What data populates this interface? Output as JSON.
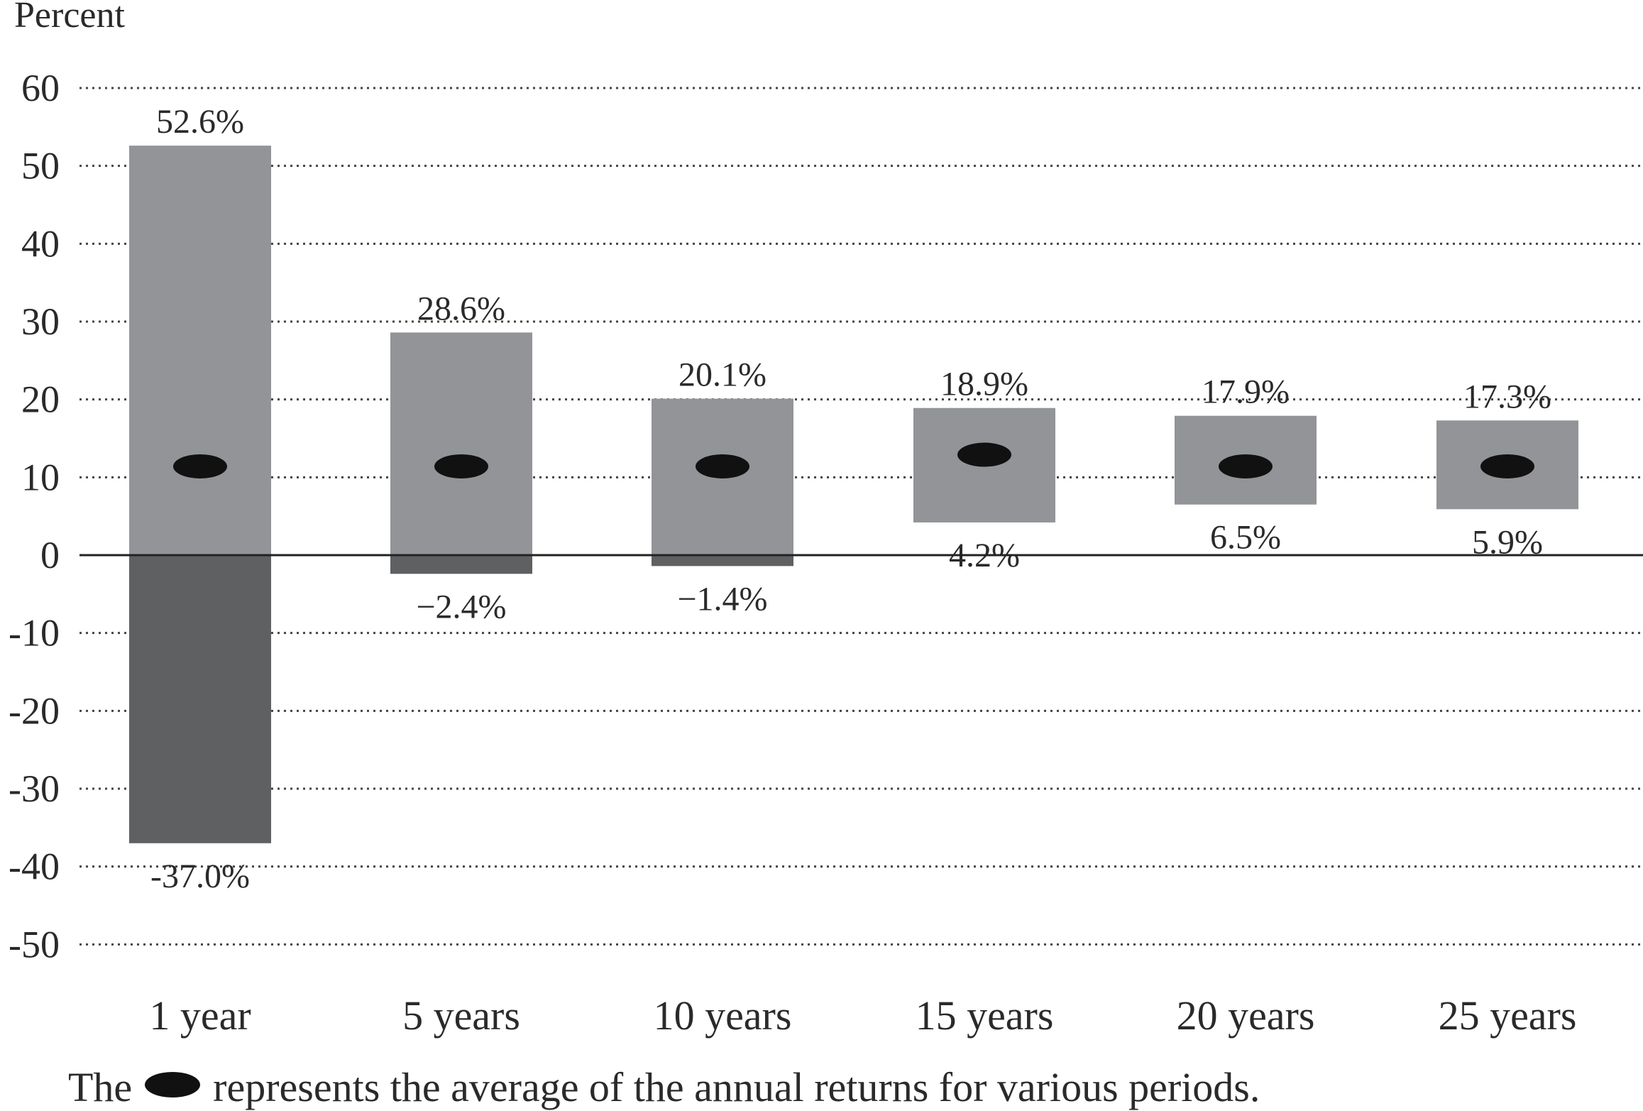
{
  "chart_data": {
    "type": "bar",
    "ylabel": "Percent",
    "ylim": [
      -50,
      60
    ],
    "yticks": [
      60,
      50,
      40,
      30,
      20,
      10,
      0,
      -10,
      -20,
      -30,
      -40,
      -50
    ],
    "grid": "dotted horizontal",
    "categories": [
      "1 year",
      "5 years",
      "10 years",
      "15 years",
      "20 years",
      "25 years"
    ],
    "series": [
      {
        "name": "max",
        "values": [
          52.6,
          28.6,
          20.1,
          18.9,
          17.9,
          17.3
        ]
      },
      {
        "name": "min",
        "values": [
          -37.0,
          -2.4,
          -1.4,
          4.2,
          6.5,
          5.9
        ]
      },
      {
        "name": "average",
        "values": [
          11.4,
          11.4,
          11.4,
          12.9,
          11.4,
          11.4
        ]
      }
    ],
    "max_labels": [
      "52.6%",
      "28.6%",
      "20.1%",
      "18.9%",
      "17.9%",
      "17.3%"
    ],
    "min_labels": [
      "-37.0%",
      "−2.4%",
      "−1.4%",
      "4.2%",
      "6.5%",
      "5.9%"
    ],
    "colors": {
      "positive": "#939497",
      "negative": "#5e6061",
      "marker": "#111111",
      "grid": "#444444"
    }
  },
  "footnote": {
    "before": "The",
    "after": "represents the average of the annual returns for various periods.",
    "marker_icon": "black-ellipse-icon"
  }
}
